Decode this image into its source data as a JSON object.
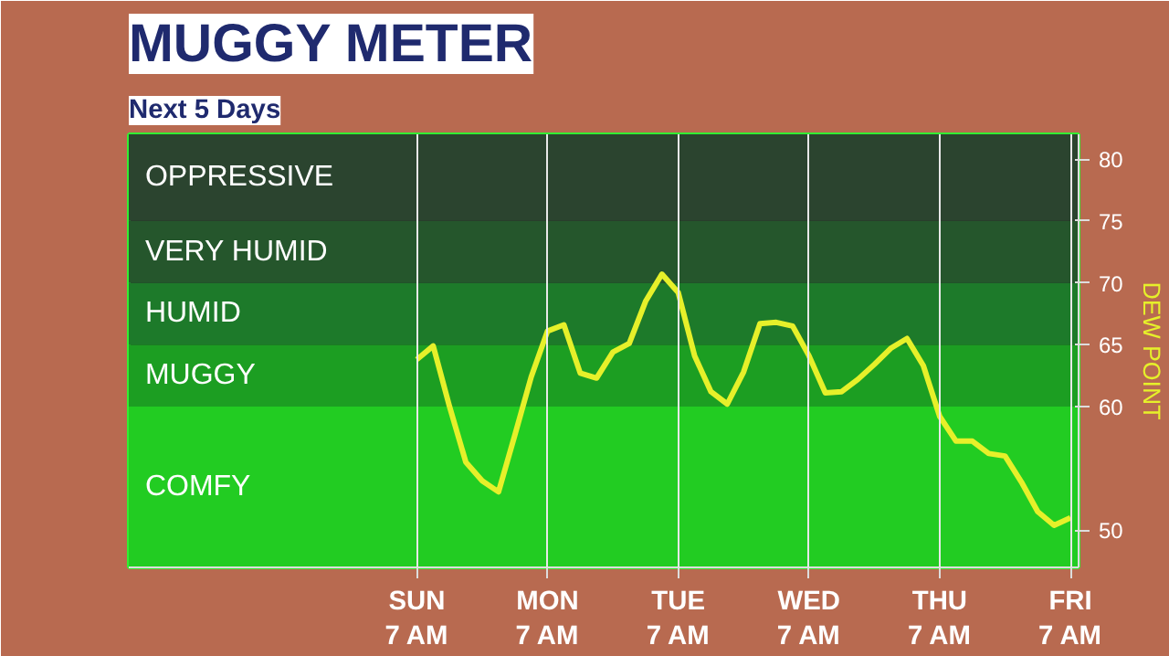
{
  "chart_data": {
    "type": "line",
    "title": "MUGGY METER",
    "subtitle": "Next 5 Days",
    "ylabel": "DEW POINT",
    "categories": [
      "SUN\n7 AM",
      null,
      null,
      null,
      null,
      null,
      null,
      null,
      "MON\n7 AM",
      null,
      null,
      null,
      null,
      null,
      null,
      null,
      "TUE\n7 AM",
      null,
      null,
      null,
      null,
      null,
      null,
      null,
      "WED\n7 AM",
      null,
      null,
      null,
      null,
      null,
      null,
      null,
      "THU\n7 AM",
      null,
      null,
      null,
      null,
      null,
      null,
      null,
      "FRI\n7 AM"
    ],
    "series": [
      {
        "color": "#e6f02a",
        "values": [
          63.8,
          64.9,
          60,
          55.5,
          54,
          53.1,
          57.7,
          62.4,
          66.1,
          66.6,
          62.7,
          62.3,
          64.4,
          65.1,
          68.5,
          70.7,
          69.2,
          64.1,
          61.2,
          60.2,
          62.8,
          66.7,
          66.8,
          66.5,
          64.1,
          61.1,
          61.2,
          62.2,
          63.4,
          64.7,
          65.5,
          63.3,
          59.2,
          57.2,
          57.2,
          56.2,
          56,
          53.9,
          51.5,
          50.4,
          51
        ]
      }
    ],
    "ylim": [
      47,
      82
    ],
    "yticks": [
      50,
      60,
      65,
      70,
      75,
      80
    ],
    "grid": "x",
    "marker": "none",
    "line_style": "solid",
    "bands": [
      {
        "axis": "y",
        "from": 47,
        "to": 60,
        "label": "COMFY",
        "color": "#22cc22"
      },
      {
        "axis": "y",
        "from": 60,
        "to": 65,
        "label": "MUGGY",
        "color": "#1c9e22"
      },
      {
        "axis": "y",
        "from": 65,
        "to": 70,
        "label": "HUMID",
        "color": "#1d7a2a"
      },
      {
        "axis": "y",
        "from": 70,
        "to": 75,
        "label": "VERY HUMID",
        "color": "#25562c"
      },
      {
        "axis": "y",
        "from": 75,
        "to": 82,
        "label": "OPPRESSIVE",
        "color": "#2b442f"
      }
    ]
  }
}
